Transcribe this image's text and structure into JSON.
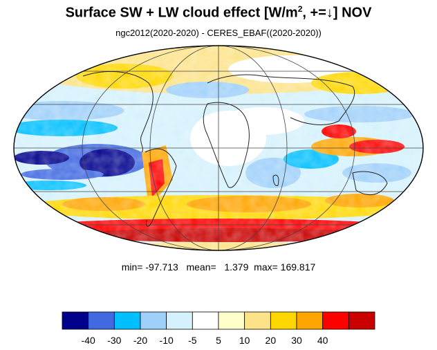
{
  "title": {
    "prefix": "Surface SW + LW cloud effect [W/m",
    "sup": "2",
    "suffix": ", +=↓]  NOV"
  },
  "subtitle": "ngc2012(2020-2020) - CERES_EBAF((2020-2020))",
  "stats": {
    "text": "min= -97.713   mean=   1.379  max= 169.817",
    "min": -97.713,
    "mean": 1.379,
    "max": 169.817
  },
  "colorbar": {
    "colors": [
      "#00008b",
      "#4169e1",
      "#00bfff",
      "#9fd0fa",
      "#d4f1fd",
      "#ffffff",
      "#ffffcc",
      "#fce38a",
      "#ffd700",
      "#ffa500",
      "#ff0000",
      "#c80000"
    ],
    "labels": [
      "-40",
      "-30",
      "-20",
      "-10",
      "-5",
      "5",
      "10",
      "20",
      "30",
      "40"
    ]
  },
  "map": {
    "projection": "mollweide",
    "center_lon": 0,
    "grid": true,
    "coastlines": true
  }
}
